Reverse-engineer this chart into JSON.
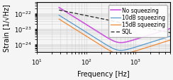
{
  "xlabel": "Frequency [Hz]",
  "ylabel": "Strain [1/√Hz]",
  "xlim": [
    30,
    5000
  ],
  "ylim": [
    3e-25,
    5e-22
  ],
  "background_color": "#f5f5f5",
  "grid_color": "#cccccc",
  "legend_entries": [
    "No squeezing",
    "10dB squeezing",
    "15dB squeezing",
    "SQL"
  ],
  "colors": {
    "no_squeeze": "#cc55dd",
    "10dB": "#5599cc",
    "15dB": "#ee8833",
    "SQL": "#222222"
  },
  "font_size": 7,
  "figsize": [
    2.44,
    1.15
  ],
  "dpi": 100
}
